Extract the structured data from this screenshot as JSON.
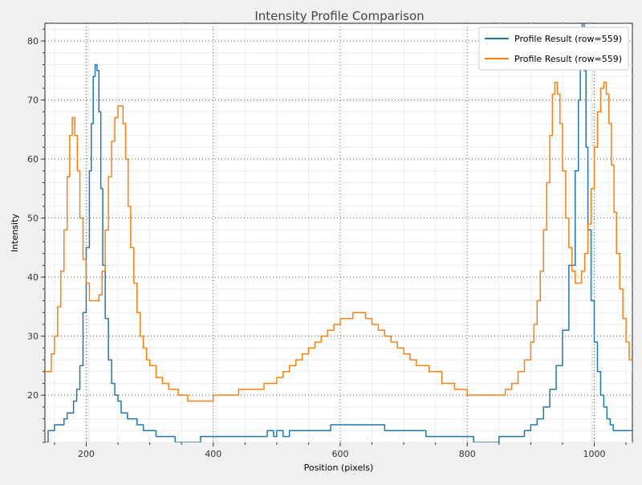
{
  "chart_data": {
    "type": "line",
    "title": "Intensity Profile Comparison",
    "xlabel": "Position (pixels)",
    "ylabel": "Intensity",
    "xlim": [
      135,
      1060
    ],
    "ylim": [
      12,
      83
    ],
    "x_ticks": [
      200,
      400,
      600,
      800,
      1000
    ],
    "y_ticks": [
      20,
      30,
      40,
      50,
      60,
      70,
      80
    ],
    "grid": true,
    "legend_position": "top-right",
    "series": [
      {
        "name": "Profile Result (row=559)",
        "color": "#1f77b4",
        "x": [
          135,
          140,
          145,
          150,
          160,
          165,
          170,
          180,
          185,
          190,
          195,
          200,
          205,
          208,
          211,
          214,
          217,
          220,
          223,
          226,
          230,
          235,
          240,
          245,
          250,
          255,
          260,
          265,
          270,
          280,
          290,
          300,
          310,
          330,
          340,
          345,
          360,
          380,
          390,
          395,
          420,
          450,
          480,
          485,
          490,
          495,
          500,
          505,
          510,
          515,
          520,
          550,
          580,
          585,
          600,
          650,
          670,
          700,
          730,
          735,
          760,
          800,
          810,
          840,
          850,
          880,
          890,
          900,
          910,
          920,
          930,
          940,
          950,
          960,
          970,
          975,
          978,
          981,
          984,
          987,
          990,
          995,
          1000,
          1005,
          1010,
          1015,
          1020,
          1025,
          1030,
          1040,
          1050,
          1060
        ],
        "y": [
          12,
          14,
          14,
          15,
          15,
          16,
          17,
          19,
          21,
          25,
          34,
          45,
          58,
          66,
          74,
          76,
          75,
          68,
          55,
          42,
          33,
          26,
          22,
          20,
          19,
          17,
          17,
          16,
          16,
          15,
          14,
          14,
          13,
          13,
          12,
          12,
          12,
          13,
          13,
          13,
          13,
          13,
          13,
          14,
          14,
          13,
          14,
          14,
          13,
          13,
          14,
          14,
          14,
          15,
          15,
          15,
          14,
          14,
          14,
          13,
          13,
          13,
          12,
          12,
          13,
          13,
          14,
          15,
          16,
          18,
          21,
          25,
          31,
          42,
          58,
          70,
          79,
          83,
          75,
          62,
          48,
          36,
          29,
          24,
          20,
          18,
          16,
          15,
          14,
          14,
          14,
          14
        ]
      },
      {
        "name": "Profile Result (row=559)",
        "color": "#ff7f0e",
        "x": [
          135,
          140,
          145,
          150,
          155,
          160,
          165,
          170,
          174,
          178,
          182,
          186,
          190,
          195,
          200,
          205,
          210,
          215,
          220,
          225,
          230,
          235,
          240,
          245,
          250,
          255,
          258,
          262,
          266,
          270,
          275,
          280,
          285,
          290,
          295,
          300,
          310,
          320,
          330,
          340,
          345,
          360,
          380,
          400,
          420,
          440,
          460,
          480,
          500,
          510,
          520,
          530,
          540,
          550,
          560,
          570,
          580,
          590,
          600,
          620,
          630,
          640,
          650,
          660,
          670,
          680,
          690,
          700,
          710,
          720,
          740,
          760,
          780,
          800,
          820,
          840,
          850,
          860,
          870,
          880,
          890,
          900,
          905,
          910,
          915,
          920,
          925,
          930,
          934,
          938,
          942,
          946,
          950,
          955,
          960,
          965,
          970,
          975,
          980,
          985,
          990,
          995,
          1000,
          1005,
          1010,
          1015,
          1019,
          1023,
          1027,
          1031,
          1035,
          1040,
          1045,
          1050,
          1055,
          1060
        ],
        "y": [
          24,
          24,
          27,
          30,
          35,
          41,
          48,
          57,
          64,
          67,
          64,
          58,
          50,
          43,
          39,
          36,
          36,
          36,
          37,
          41,
          48,
          57,
          63,
          67,
          69,
          69,
          66,
          60,
          52,
          45,
          39,
          34,
          30,
          28,
          26,
          25,
          23,
          22,
          21,
          21,
          20,
          19,
          19,
          20,
          20,
          21,
          21,
          22,
          23,
          24,
          25,
          26,
          27,
          28,
          29,
          30,
          31,
          32,
          33,
          34,
          34,
          33,
          32,
          31,
          30,
          29,
          28,
          27,
          26,
          25,
          24,
          22,
          21,
          20,
          20,
          20,
          20,
          21,
          22,
          24,
          26,
          29,
          32,
          36,
          41,
          48,
          56,
          64,
          71,
          73,
          71,
          66,
          58,
          50,
          45,
          41,
          39,
          39,
          41,
          44,
          49,
          55,
          62,
          68,
          72,
          73,
          71,
          66,
          59,
          51,
          44,
          38,
          33,
          29,
          26,
          24
        ]
      }
    ]
  }
}
